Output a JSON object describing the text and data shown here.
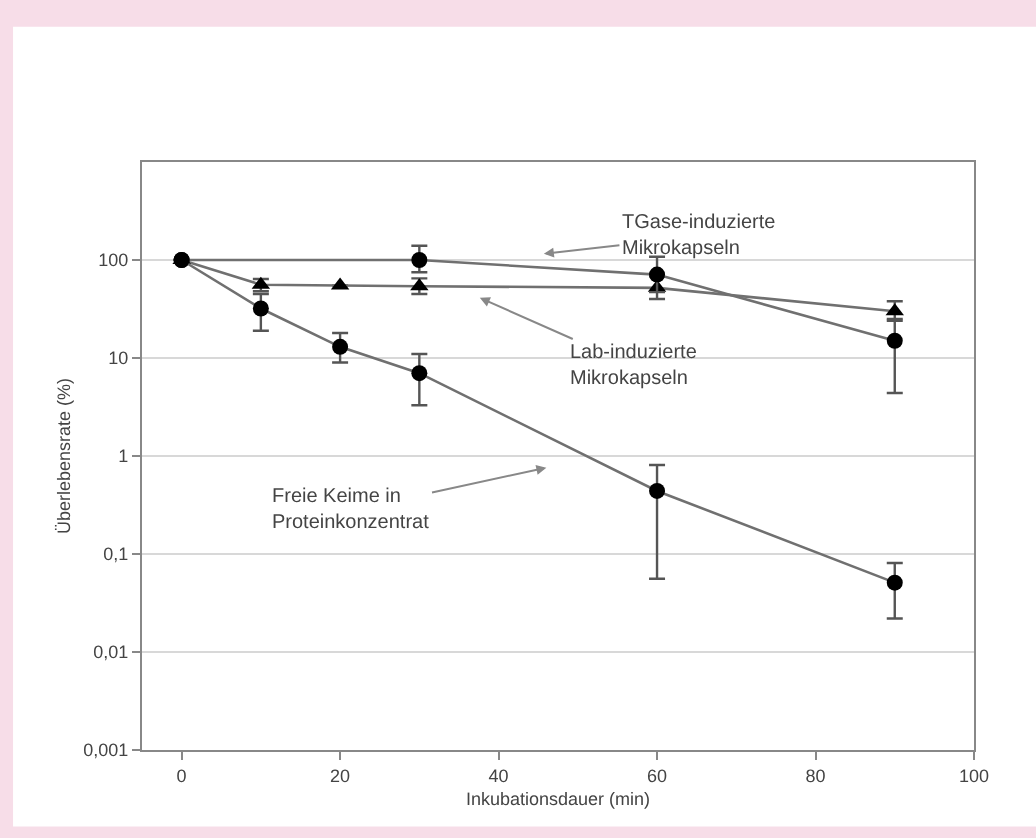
{
  "chart_data": {
    "type": "line",
    "xlabel": "Inkubationsdauer (min)",
    "ylabel": "Überlebensrate (%)",
    "log": "y",
    "grid": "y",
    "line_style": "solid",
    "xlim": [
      -5,
      100
    ],
    "xticks": [
      0,
      20,
      40,
      60,
      80,
      100
    ],
    "ylim": [
      0.001,
      1000
    ],
    "yticks": [
      {
        "value": 0.001,
        "label": "0,001"
      },
      {
        "value": 0.01,
        "label": "0,01"
      },
      {
        "value": 0.1,
        "label": "0,1"
      },
      {
        "value": 1,
        "label": "1"
      },
      {
        "value": 10,
        "label": "10"
      },
      {
        "value": 100,
        "label": "100"
      }
    ],
    "series": [
      {
        "color": "#000000",
        "marker": "triangle",
        "x": [
          0,
          10,
          20,
          30,
          60,
          90
        ],
        "values": [
          100,
          56,
          55,
          54,
          52,
          30
        ],
        "errors": [
          null,
          [
            48,
            64
          ],
          null,
          [
            45,
            65
          ],
          [
            40,
            68
          ],
          [
            24,
            38
          ]
        ]
      },
      {
        "color": "#000000",
        "marker": "circle",
        "x": [
          0,
          30,
          60,
          90
        ],
        "values": [
          100,
          100,
          71,
          15
        ],
        "errors": [
          null,
          [
            75,
            140
          ],
          [
            47,
            108
          ],
          [
            4.4,
            25
          ]
        ]
      },
      {
        "color": "#000000",
        "marker": "circle",
        "x": [
          0,
          10,
          20,
          30,
          60,
          90
        ],
        "values": [
          100,
          32,
          13,
          7,
          0.44,
          0.051
        ],
        "errors": [
          null,
          [
            19,
            45
          ],
          [
            9,
            18
          ],
          [
            3.3,
            11
          ],
          [
            0.056,
            0.81
          ],
          [
            0.022,
            0.081
          ]
        ]
      }
    ],
    "annotations": [
      "TGase-induzierte\nMikrokapseln",
      "Lab-induzierte\nMikrokapseln",
      "Freie Keime in\nProteinkonzentrat"
    ]
  }
}
